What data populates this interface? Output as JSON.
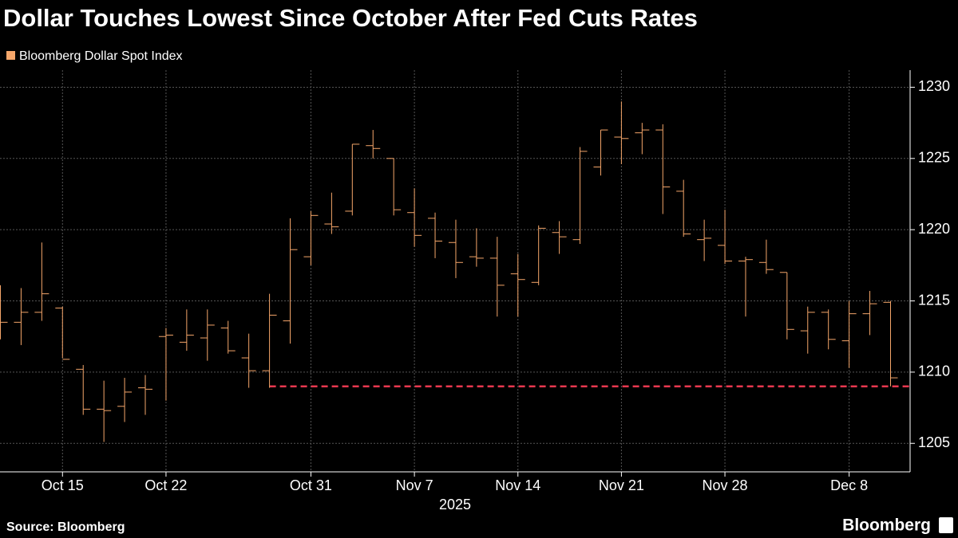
{
  "chart_data": {
    "type": "ohlc",
    "title": "Dollar Touches Lowest Since October After Fed Cuts Rates",
    "series_name": "Bloomberg Dollar Spot Index",
    "color": "#f5a66a",
    "x": [
      "2025-10-10",
      "2025-10-13",
      "2025-10-14",
      "2025-10-15",
      "2025-10-16",
      "2025-10-17",
      "2025-10-20",
      "2025-10-21",
      "2025-10-22",
      "2025-10-23",
      "2025-10-24",
      "2025-10-27",
      "2025-10-28",
      "2025-10-29",
      "2025-10-30",
      "2025-10-31",
      "2025-11-03",
      "2025-11-04",
      "2025-11-05",
      "2025-11-06",
      "2025-11-07",
      "2025-11-10",
      "2025-11-11",
      "2025-11-12",
      "2025-11-13",
      "2025-11-14",
      "2025-11-17",
      "2025-11-18",
      "2025-11-19",
      "2025-11-20",
      "2025-11-21",
      "2025-11-24",
      "2025-11-25",
      "2025-11-26",
      "2025-11-27",
      "2025-11-28",
      "2025-12-01",
      "2025-12-02",
      "2025-12-03",
      "2025-12-04",
      "2025-12-05",
      "2025-12-08",
      "2025-12-09",
      "2025-12-10"
    ],
    "open": [
      1213.5,
      1213.5,
      1214.2,
      1214.5,
      1210.2,
      1207.4,
      1207.6,
      1208.9,
      1212.5,
      1212.1,
      1212.4,
      1213.1,
      1211.0,
      1210.1,
      1213.6,
      1218.1,
      1220.4,
      1221.3,
      1225.9,
      1225.0,
      1221.2,
      1220.8,
      1219.1,
      1218.1,
      1218.0,
      1216.9,
      1216.3,
      1219.8,
      1219.3,
      1224.4,
      1226.5,
      1226.8,
      1227.0,
      1222.7,
      1219.3,
      1218.9,
      1217.8,
      1217.7,
      1217.0,
      1212.9,
      1214.2,
      1212.2,
      1214.1,
      1214.9
    ],
    "high": [
      1216.1,
      1215.9,
      1219.1,
      1214.6,
      1210.5,
      1209.4,
      1209.6,
      1209.8,
      1213.1,
      1214.4,
      1214.4,
      1213.6,
      1212.7,
      1215.5,
      1220.8,
      1221.3,
      1222.6,
      1226.0,
      1227.0,
      1225.0,
      1222.9,
      1221.2,
      1220.7,
      1220.1,
      1219.5,
      1218.3,
      1220.3,
      1220.6,
      1225.8,
      1227.0,
      1229.0,
      1227.5,
      1227.4,
      1223.5,
      1220.7,
      1221.4,
      1218.1,
      1219.3,
      1217.0,
      1214.6,
      1214.4,
      1215.0,
      1215.7,
      1215.0
    ],
    "low": [
      1212.3,
      1211.9,
      1213.6,
      1211.0,
      1207.0,
      1205.1,
      1206.5,
      1207.0,
      1208.0,
      1211.5,
      1210.8,
      1211.3,
      1208.9,
      1208.9,
      1212.0,
      1217.5,
      1219.7,
      1221.0,
      1225.0,
      1221.0,
      1218.8,
      1218.0,
      1216.6,
      1217.4,
      1213.9,
      1213.9,
      1216.1,
      1218.3,
      1219.0,
      1223.8,
      1224.6,
      1225.3,
      1221.1,
      1219.5,
      1217.8,
      1217.6,
      1213.9,
      1216.9,
      1212.3,
      1211.3,
      1211.6,
      1210.3,
      1212.6,
      1209.0
    ],
    "close": [
      1213.5,
      1214.2,
      1215.5,
      1210.9,
      1207.4,
      1207.3,
      1208.6,
      1208.8,
      1212.6,
      1212.6,
      1213.3,
      1211.5,
      1210.1,
      1214.0,
      1218.6,
      1221.0,
      1220.2,
      1226.0,
      1225.7,
      1221.4,
      1219.6,
      1219.2,
      1217.7,
      1218.0,
      1216.1,
      1216.5,
      1220.1,
      1219.5,
      1225.5,
      1227.0,
      1226.4,
      1227.0,
      1223.0,
      1219.7,
      1219.4,
      1217.8,
      1217.9,
      1217.2,
      1213.0,
      1214.2,
      1212.3,
      1214.1,
      1214.8,
      1209.6
    ],
    "xticks": [
      {
        "value": "2025-10-15",
        "label": "Oct 15"
      },
      {
        "value": "2025-10-22",
        "label": "Oct 22"
      },
      {
        "value": "2025-10-31",
        "label": "Oct 31"
      },
      {
        "value": "2025-11-07",
        "label": "Nov 7"
      },
      {
        "value": "2025-11-14",
        "label": "Nov 14"
      },
      {
        "value": "2025-11-21",
        "label": "Nov 21"
      },
      {
        "value": "2025-11-28",
        "label": "Nov 28"
      },
      {
        "value": "2025-12-08",
        "label": "Dec 8"
      }
    ],
    "x_label": "2025",
    "ylim": [
      1203,
      1231.2
    ],
    "yticks": [
      1205,
      1210,
      1215,
      1220,
      1225,
      1230
    ],
    "grid": true,
    "reference_line": {
      "value": 1209,
      "start": "2025-10-29",
      "color": "#e8384f"
    },
    "source": "Source: Bloomberg",
    "brand": "Bloomberg"
  }
}
